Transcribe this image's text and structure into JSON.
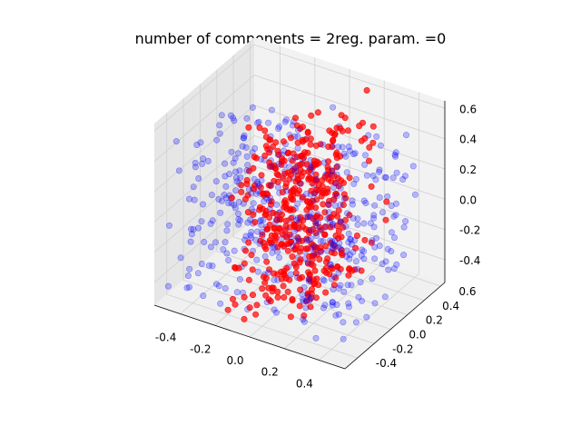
{
  "chart_data": {
    "type": "scatter",
    "projection": "3d",
    "title": "number of components = 2reg. param. =0",
    "xlabel": "",
    "ylabel": "",
    "zlabel": "",
    "xlim": [
      -0.55,
      0.55
    ],
    "ylim": [
      -0.55,
      0.65
    ],
    "zlim": [
      -0.55,
      0.65
    ],
    "x_ticks": [
      "-0.4",
      "-0.2",
      "0.0",
      "0.2",
      "0.4"
    ],
    "y_ticks": [
      "-0.4",
      "-0.2",
      "0.0",
      "0.2",
      "0.4",
      "0.6"
    ],
    "z_ticks": [
      "-0.4",
      "-0.2",
      "0.0",
      "0.2",
      "0.4",
      "0.6"
    ],
    "grid": true,
    "series": [
      {
        "color": "#0000ff",
        "alpha": 0.25,
        "distribution": "uniform in cube",
        "range": [
          -0.5,
          0.5
        ],
        "count": 450
      },
      {
        "color": "#ff0000",
        "alpha": 0.7,
        "distribution": "two elongated clusters near x = 0",
        "count": 450
      }
    ]
  }
}
